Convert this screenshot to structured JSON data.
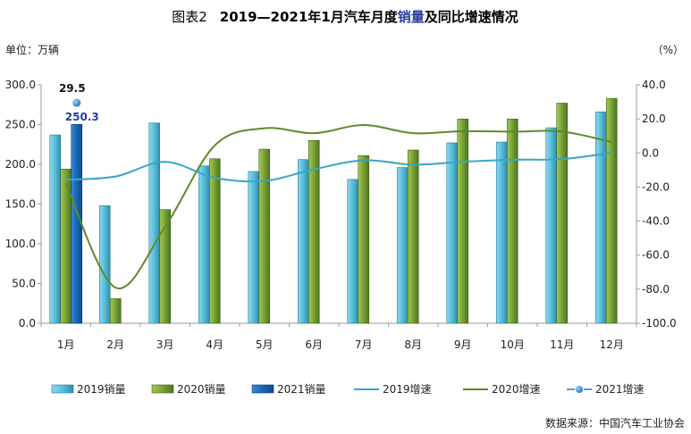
{
  "colors": {
    "s2019_bar": "#4fb8d6",
    "s2020_bar": "#6a9a2a",
    "s2021_bar": "#1a63b5",
    "s2019_line": "#3aa6c4",
    "s2020_line": "#5e8a2c",
    "s2021_marker": "#2a78c2",
    "axis": "#9a9a9a",
    "title_blue": "#2a3ea0"
  },
  "chart_data": {
    "type": "bar",
    "title_prefix": "图表2",
    "title_main": "2019—2021年1月汽车月度",
    "title_highlight": "销量",
    "title_suffix": "及同比增速情况",
    "left_unit": "单位：万辆",
    "right_unit": "（%）",
    "source": "数据来源：中国汽车工业协会",
    "categories": [
      "1月",
      "2月",
      "3月",
      "4月",
      "5月",
      "6月",
      "7月",
      "8月",
      "9月",
      "10月",
      "11月",
      "12月"
    ],
    "y_left": {
      "min": 0,
      "max": 300,
      "step": 50,
      "ticks": [
        "0.0",
        "50.0",
        "100.0",
        "150.0",
        "200.0",
        "250.0",
        "300.0"
      ]
    },
    "y_right": {
      "min": -100,
      "max": 40,
      "step": 20,
      "ticks": [
        "-100.0",
        "-80.0",
        "-60.0",
        "-40.0",
        "-20.0",
        "0.0",
        "20.0",
        "40.0"
      ]
    },
    "bar_series": [
      {
        "name": "2019销量",
        "values": [
          237,
          148,
          252,
          198,
          191,
          206,
          181,
          196,
          227,
          228,
          246,
          266
        ]
      },
      {
        "name": "2020销量",
        "values": [
          194,
          31,
          143,
          207,
          219,
          230,
          211,
          218,
          257,
          257,
          277,
          283
        ]
      },
      {
        "name": "2021销量",
        "values": [
          250.3,
          null,
          null,
          null,
          null,
          null,
          null,
          null,
          null,
          null,
          null,
          null
        ]
      }
    ],
    "line_series": [
      {
        "name": "2019增速",
        "values": [
          -15.8,
          -13.8,
          -5.2,
          -14.6,
          -16.4,
          -9.6,
          -4.3,
          -6.9,
          -5.2,
          -4.0,
          -3.6,
          0.1
        ]
      },
      {
        "name": "2020增速",
        "values": [
          -18.0,
          -79.1,
          -43.3,
          4.4,
          14.5,
          11.6,
          16.4,
          11.6,
          12.8,
          12.5,
          12.6,
          6.4
        ]
      },
      {
        "name": "2021增速",
        "values": [
          29.5,
          null,
          null,
          null,
          null,
          null,
          null,
          null,
          null,
          null,
          null,
          null
        ]
      }
    ],
    "data_labels": {
      "line_2021_jan": "29.5",
      "bar_2021_jan": "250.3"
    },
    "legend_position": "bottom",
    "grid": false
  }
}
